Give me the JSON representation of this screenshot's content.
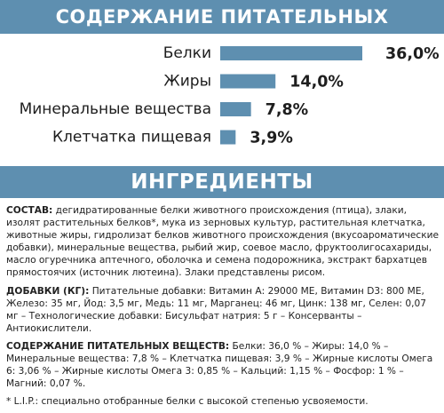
{
  "header_title": "СОДЕРЖАНИЕ ПИТАТЕЛЬНЫХ ВЕЩЕСТВ",
  "chart_data": {
    "type": "bar",
    "categories": [
      "Белки",
      "Жиры",
      "Минеральные вещества",
      "Клетчатка пищевая"
    ],
    "values": [
      36.0,
      14.0,
      7.8,
      3.9
    ],
    "value_labels": [
      "36,0%",
      "14,0%",
      "7,8%",
      "3,9%"
    ],
    "color": "#5e8fb0"
  },
  "ingredients_title": "ИНГРЕДИЕНТЫ",
  "composition": {
    "label": "СОСТАВ:",
    "text": " дегидратированные белки животного происхождения (птица), злаки, изолят растительных белков*, мука из зерновых культур, растительная клетчатка, животные жиры, гидролизат белков животного происхождения (вкусоароматические добавки), минеральные вещества, рыбий жир, соевое масло, фруктоолигосахариды, масло огуречника аптечного, оболочка и семена подорожника, экстракт бархатцев прямостоячих (источник лютеина). Злаки представлены рисом."
  },
  "additives": {
    "label": "ДОБАВКИ (КГ):",
    "text": " Питательные добавки: Витамин А: 29000 МЕ, Витамин D3: 800 МЕ, Железо: 35 мг, Йод: 3,5 мг, Медь: 11 мг, Марганец: 46 мг, Цинк: 138 мг, Селен: 0,07 мг – Технологические добавки: Бисульфат натрия: 5 г – Консерванты – Антиокислители."
  },
  "nutrients": {
    "label": "СОДЕРЖАНИЕ ПИТАТЕЛЬНЫХ ВЕЩЕСТВ:",
    "text": " Белки: 36,0 % – Жиры: 14,0 % – Минеральные вещества: 7,8 % – Клетчатка пищевая: 3,9 % – Жирные кислоты Омега 6: 3,06 % – Жирные кислоты Омега 3: 0,85 % – Кальций: 1,15 % – Фосфор: 1 % – Магний: 0,07 %."
  },
  "footnote": "* L.I.P.: специально отобранные белки с высокой степенью усвояемости."
}
